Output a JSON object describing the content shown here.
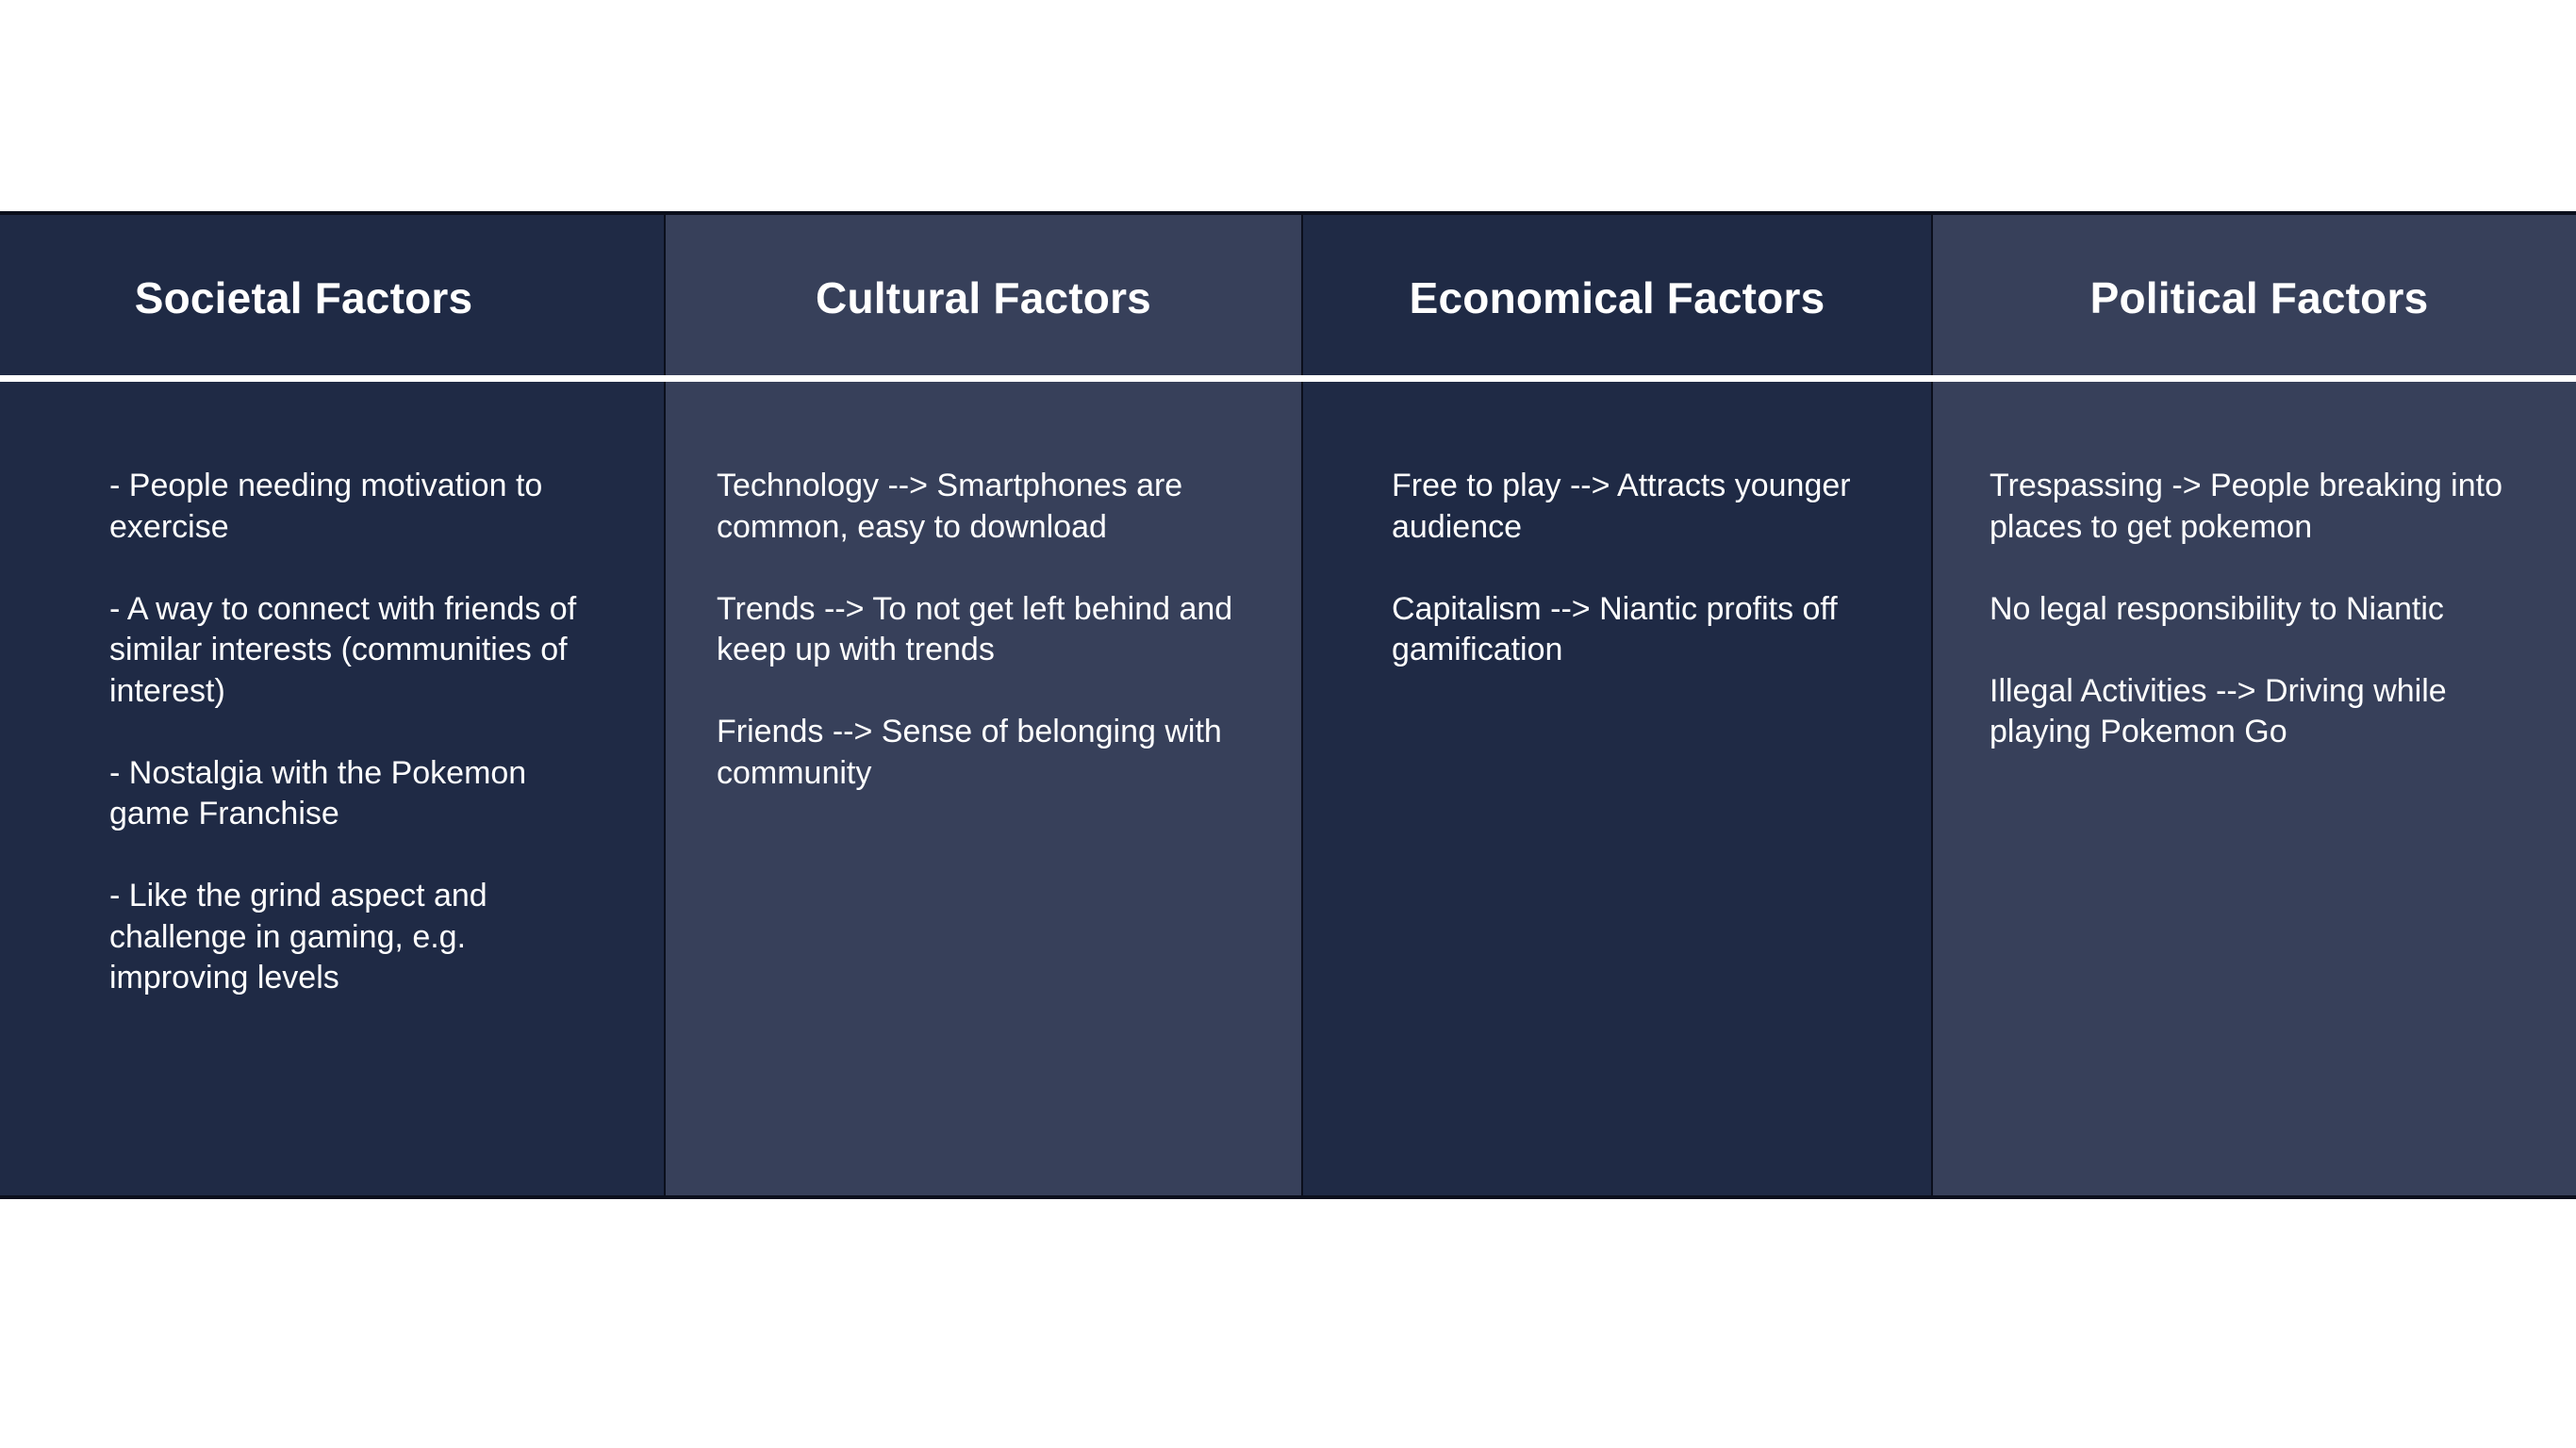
{
  "columns": [
    {
      "heading": "Societal Factors",
      "items": [
        "- People needing motivation to exercise",
        "- A way to connect with friends of similar interests (communities of interest)",
        "- Nostalgia with the Pokemon game Franchise",
        "- Like the grind aspect and challenge in gaming, e.g. improving levels"
      ]
    },
    {
      "heading": "Cultural Factors",
      "items": [
        "Technology --> Smartphones are common, easy to download",
        "Trends --> To not get left behind and keep up with trends",
        "Friends --> Sense of belonging with community"
      ]
    },
    {
      "heading": "Economical Factors",
      "items": [
        "Free to play --> Attracts younger audience",
        "Capitalism --> Niantic profits off gamification"
      ]
    },
    {
      "heading": "Political Factors",
      "items": [
        "Trespassing -> People breaking into places to get pokemon",
        "No legal responsibility to Niantic",
        "Illegal Activities --> Driving while playing Pokemon Go"
      ]
    }
  ],
  "colors": {
    "dark_column": "#1f2a45",
    "light_column": "#37405a",
    "text": "#ffffff",
    "divider": "#ffffff"
  }
}
